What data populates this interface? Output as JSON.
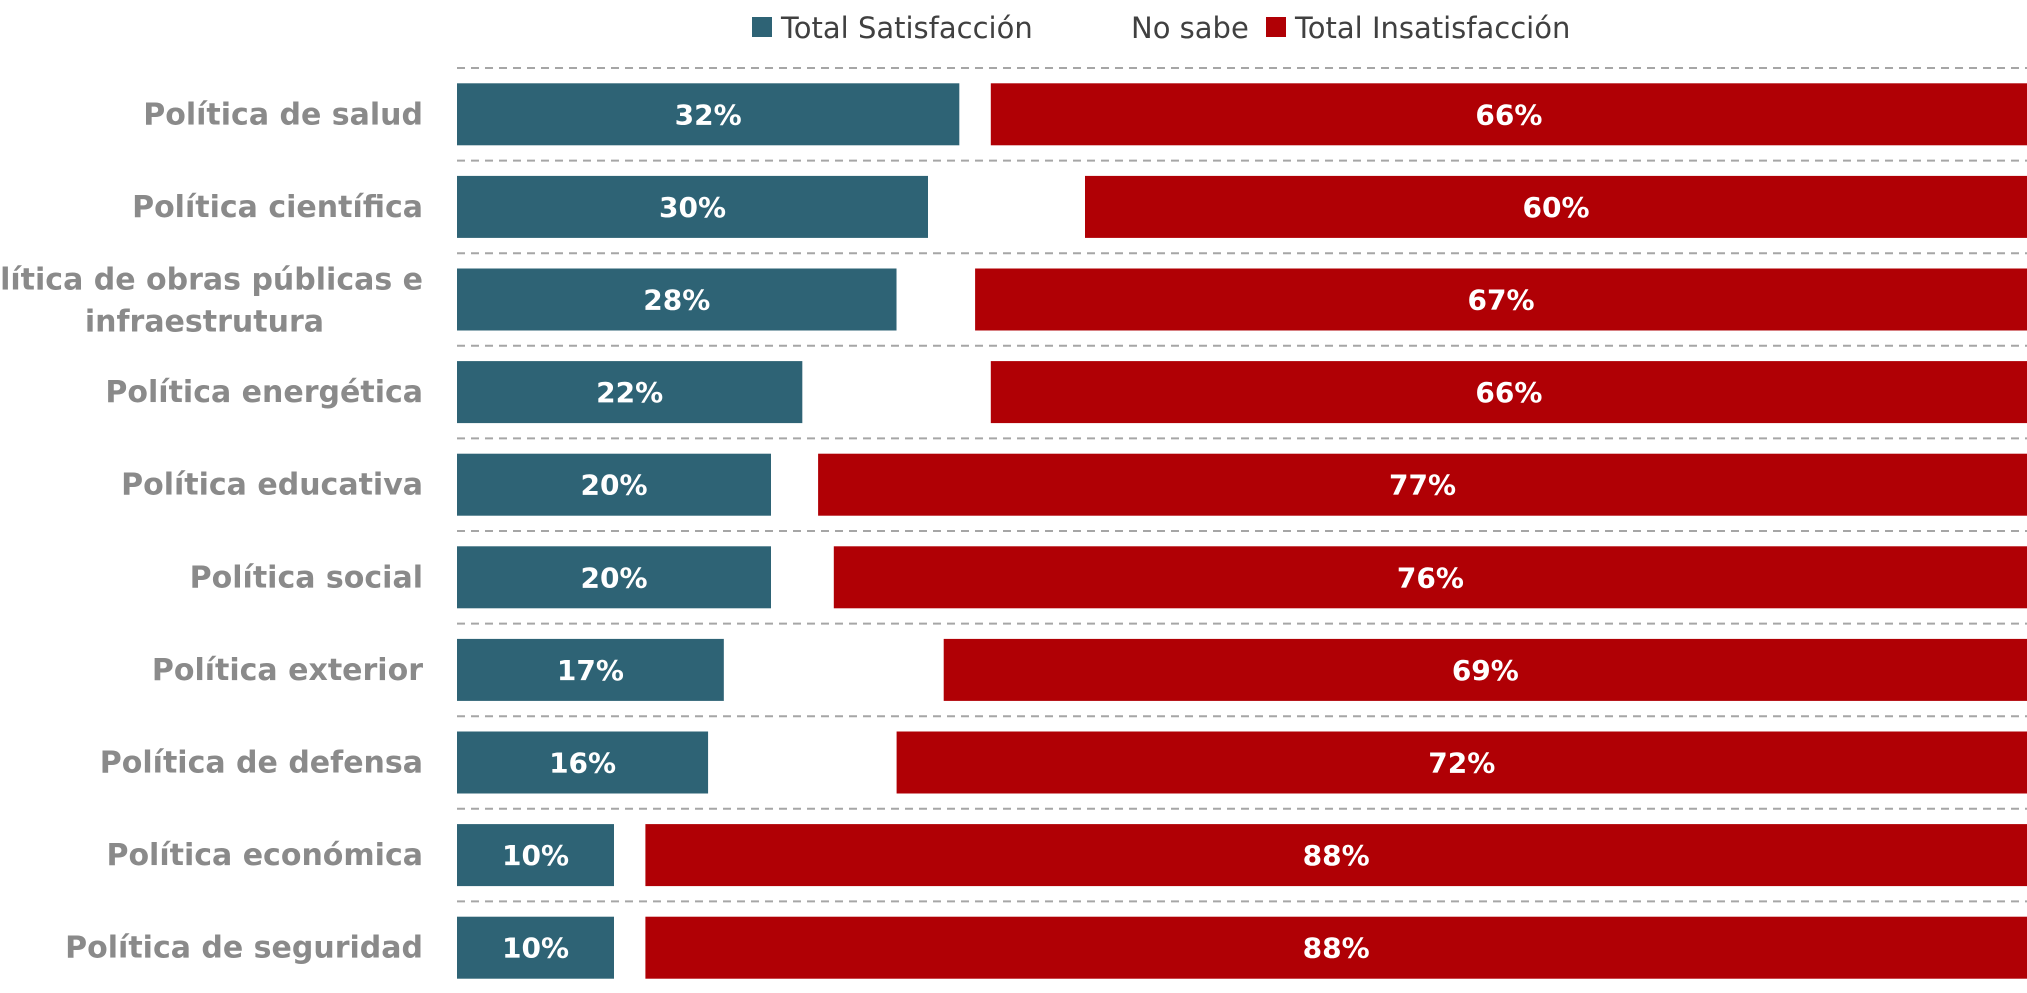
{
  "chart_data": {
    "type": "bar",
    "orientation": "horizontal",
    "stacked": true,
    "xlim": [
      0,
      100
    ],
    "legend": {
      "position": "top"
    },
    "categories": [
      "Política de salud",
      "Política científica",
      "Política de obras públicas e infraestrutura",
      "Política energética",
      "Política educativa",
      "Política social",
      "Política exterior",
      "Política de defensa",
      "Política económica",
      "Política de seguridad"
    ],
    "category_lines": [
      [
        "Política de salud"
      ],
      [
        "Política científica"
      ],
      [
        "Política de obras públicas e",
        "infraestrutura"
      ],
      [
        "Política energética"
      ],
      [
        "Política educativa"
      ],
      [
        "Política social"
      ],
      [
        "Política exterior"
      ],
      [
        "Política de defensa"
      ],
      [
        "Política económica"
      ],
      [
        "Política de seguridad"
      ]
    ],
    "series": [
      {
        "name": "Total Satisfacción",
        "color": "#2e6375",
        "values": [
          32,
          30,
          28,
          22,
          20,
          20,
          17,
          16,
          10,
          10
        ],
        "labels": [
          "32%",
          "30%",
          "28%",
          "22%",
          "20%",
          "20%",
          "17%",
          "16%",
          "10%",
          "10%"
        ]
      },
      {
        "name": "No sabe",
        "color": "#ffffff",
        "values": [
          2,
          10,
          5,
          12,
          3,
          4,
          14,
          12,
          2,
          2
        ],
        "labels": []
      },
      {
        "name": "Total Insatisfacción",
        "color": "#b00005",
        "values": [
          66,
          60,
          67,
          66,
          77,
          76,
          69,
          72,
          88,
          88
        ],
        "labels": [
          "66%",
          "60%",
          "67%",
          "66%",
          "77%",
          "76%",
          "69%",
          "72%",
          "88%",
          "88%"
        ]
      }
    ]
  }
}
